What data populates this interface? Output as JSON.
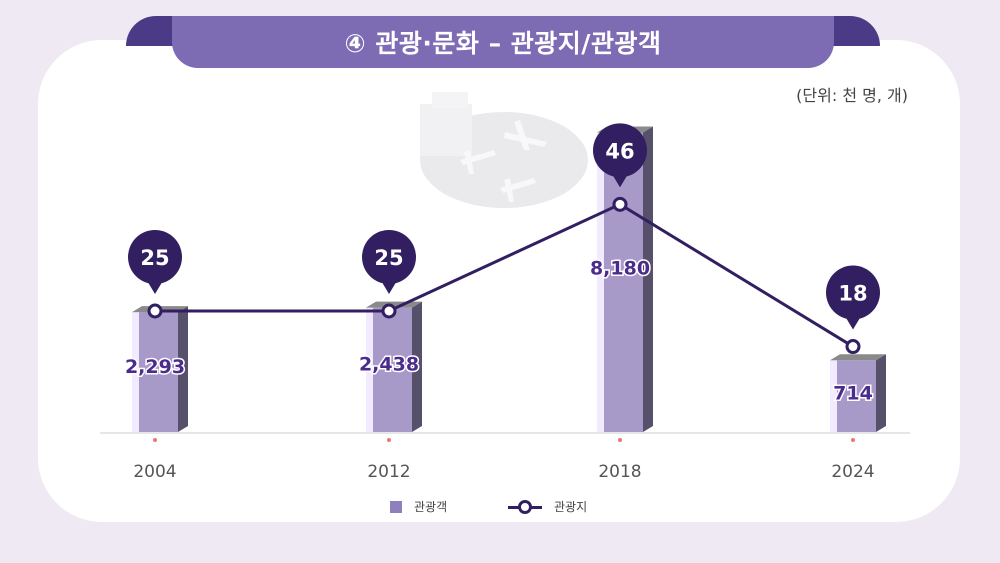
{
  "header": {
    "title": "④ 관광·문화 – 관광지/관광객"
  },
  "unit_label": "(단위: 천 명, 개)",
  "legend": {
    "bar_label": "관광객",
    "line_label": "관광지"
  },
  "colors": {
    "banner": "#7d6bb4",
    "banner_ear": "#4b3a86",
    "bar_front": "#a79ac8",
    "bar_side": "#56506a",
    "bar_top": "#8a8a8a",
    "bar_highlight": "#f2eaff",
    "line": "#321f61",
    "pin": "#321f61",
    "value_text": "#4b2c8c",
    "tick_dot": "#e87a6e"
  },
  "chart_data": {
    "type": "bar",
    "categories": [
      "2004",
      "2012",
      "2018",
      "2024"
    ],
    "series": [
      {
        "name": "관광객",
        "type": "bar",
        "values": [
          2293,
          2438,
          8180,
          714
        ],
        "labels": [
          "2,293",
          "2,438",
          "8,180",
          "714"
        ]
      },
      {
        "name": "관광지",
        "type": "line",
        "values": [
          25,
          25,
          46,
          18
        ],
        "labels": [
          "25",
          "25",
          "46",
          "18"
        ]
      }
    ],
    "title": "④ 관광·문화 – 관광지/관광객",
    "unit": "(단위: 천 명, 개)",
    "legend_position": "bottom",
    "grid": false
  }
}
